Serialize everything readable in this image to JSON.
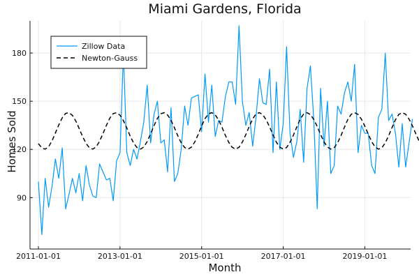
{
  "chart_data": {
    "type": "line",
    "title": "Miami Gardens, Florida",
    "xlabel": "Month",
    "ylabel": "Homes Sold",
    "x_ticks": [
      "2011-01-01",
      "2013-01-01",
      "2015-01-01",
      "2017-01-01",
      "2019-01-01"
    ],
    "y_ticks": [
      90,
      120,
      150,
      180
    ],
    "xlim": [
      "2011-01-01",
      "2019-12-01"
    ],
    "ylim": [
      58,
      200
    ],
    "grid": true,
    "legend_position": "top-left",
    "series": [
      {
        "name": "Zillow Data",
        "color": "#009af9",
        "style": "solid",
        "x_start": "2011-01-01",
        "x_frequency": "monthly",
        "values": [
          100,
          67,
          102,
          84,
          97,
          114,
          102,
          121,
          83,
          92,
          102,
          93,
          105,
          88,
          110,
          98,
          91,
          90,
          111,
          106,
          101,
          102,
          88,
          113,
          118,
          180,
          118,
          110,
          120,
          114,
          125,
          137,
          160,
          124,
          142,
          150,
          124,
          126,
          106,
          146,
          100,
          105,
          120,
          147,
          135,
          152,
          153,
          154,
          131,
          167,
          137,
          160,
          128,
          138,
          137,
          153,
          162,
          162,
          148,
          197,
          150,
          135,
          143,
          122,
          140,
          164,
          149,
          148,
          170,
          118,
          162,
          120,
          136,
          184,
          130,
          115,
          125,
          145,
          112,
          158,
          172,
          138,
          83,
          158,
          122,
          150,
          105,
          110,
          147,
          142,
          155,
          162,
          150,
          173,
          118,
          135,
          130,
          130,
          110,
          105,
          140,
          145,
          180,
          138,
          142,
          130,
          109,
          136,
          109,
          124,
          139
        ]
      },
      {
        "name": "Newton-Gauss",
        "color": "#000000",
        "style": "dashed",
        "x_start": "2011-01-01",
        "x_frequency": "monthly",
        "values": [
          123.6,
          120.9,
          120.2,
          121.7,
          125.3,
          130.2,
          135.3,
          139.7,
          142.4,
          142.9,
          141.2,
          137.7,
          133.0,
          128.0,
          123.8,
          121.0,
          120.2,
          121.6,
          125.1,
          129.9,
          135.0,
          139.5,
          142.3,
          142.9,
          141.3,
          137.9,
          133.3,
          128.2,
          124.0,
          121.1,
          120.2,
          121.5,
          124.9,
          129.7,
          134.8,
          139.3,
          142.2,
          142.9,
          141.4,
          138.1,
          133.5,
          128.5,
          124.1,
          121.2,
          120.2,
          121.4,
          124.7,
          129.4,
          134.6,
          139.2,
          142.1,
          142.9,
          141.5,
          138.3,
          133.8,
          128.7,
          124.3,
          121.3,
          120.2,
          121.3,
          124.6,
          129.2,
          134.3,
          139.0,
          142.1,
          142.9,
          141.6,
          138.4,
          134.0,
          129.0,
          124.5,
          121.4,
          120.2,
          121.2,
          124.4,
          128.9,
          134.1,
          138.8,
          142.0,
          142.9,
          141.7,
          138.6,
          134.2,
          129.2,
          124.7,
          121.5,
          120.2,
          121.1,
          124.2,
          128.7,
          133.8,
          138.7,
          141.9,
          142.9,
          141.8,
          138.8,
          134.5,
          129.5,
          124.9,
          121.6,
          120.2,
          121.0,
          124.1,
          128.5,
          133.6,
          138.5,
          141.8,
          142.9,
          141.9,
          138.9,
          134.7,
          129.7,
          125.0,
          121.7,
          120.2
        ]
      }
    ]
  }
}
